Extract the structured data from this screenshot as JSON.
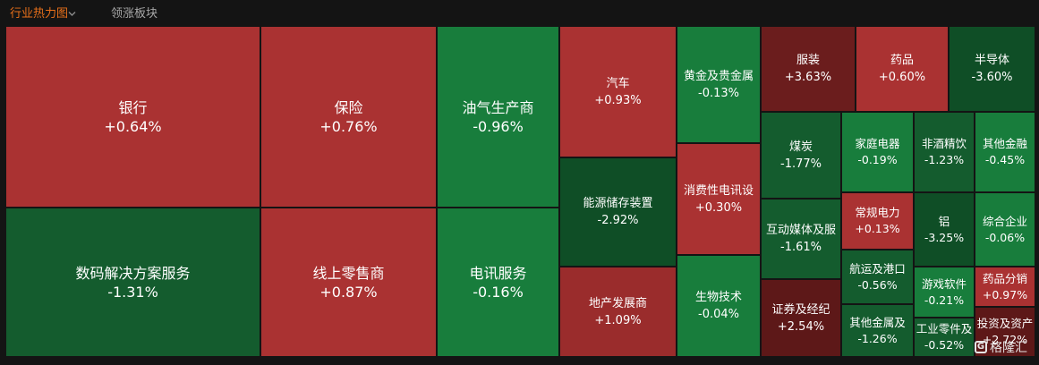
{
  "tabs": [
    {
      "label": "行业热力图",
      "active": true
    },
    {
      "label": "领涨板块",
      "active": false
    }
  ],
  "colors": {
    "up": "#aa3232",
    "down": "#187d3c",
    "strong_up": "#6b1d1d",
    "strong_down": "#0f4e26",
    "accent": "#e8701a"
  },
  "tiles": [
    {
      "name": "银行",
      "change": "+0.64%"
    },
    {
      "name": "数码解决方案服务",
      "change": "-1.31%"
    },
    {
      "name": "保险",
      "change": "+0.76%"
    },
    {
      "name": "线上零售商",
      "change": "+0.87%"
    },
    {
      "name": "油气生产商",
      "change": "-0.96%"
    },
    {
      "name": "电讯服务",
      "change": "-0.16%"
    },
    {
      "name": "汽车",
      "change": "+0.93%"
    },
    {
      "name": "能源储存装置",
      "change": "-2.92%"
    },
    {
      "name": "地产发展商",
      "change": "+1.09%"
    },
    {
      "name": "黄金及贵金属",
      "change": "-0.13%"
    },
    {
      "name": "消费性电讯设",
      "change": "+0.30%"
    },
    {
      "name": "生物技术",
      "change": "-0.04%"
    },
    {
      "name": "服装",
      "change": "+3.63%"
    },
    {
      "name": "药品",
      "change": "+0.60%"
    },
    {
      "name": "半导体",
      "change": "-3.60%"
    },
    {
      "name": "煤炭",
      "change": "-1.77%"
    },
    {
      "name": "家庭电器",
      "change": "-0.19%"
    },
    {
      "name": "非酒精饮",
      "change": "-1.23%"
    },
    {
      "name": "其他金融",
      "change": "-0.45%"
    },
    {
      "name": "互动媒体及服",
      "change": "-1.61%"
    },
    {
      "name": "常规电力",
      "change": "+0.13%"
    },
    {
      "name": "铝",
      "change": "-3.25%"
    },
    {
      "name": "综合企业",
      "change": "-0.06%"
    },
    {
      "name": "航运及港口",
      "change": "-0.56%"
    },
    {
      "name": "游戏软件",
      "change": "-0.21%"
    },
    {
      "name": "药品分销",
      "change": "+0.97%"
    },
    {
      "name": "证券及经纪",
      "change": "+2.54%"
    },
    {
      "name": "其他金属及",
      "change": "-1.26%"
    },
    {
      "name": "工业零件及",
      "change": "-0.52%"
    },
    {
      "name": "投资及资产",
      "change": "+2.72%"
    }
  ],
  "watermark": {
    "text": "格隆汇",
    "logo_letter": "G"
  }
}
